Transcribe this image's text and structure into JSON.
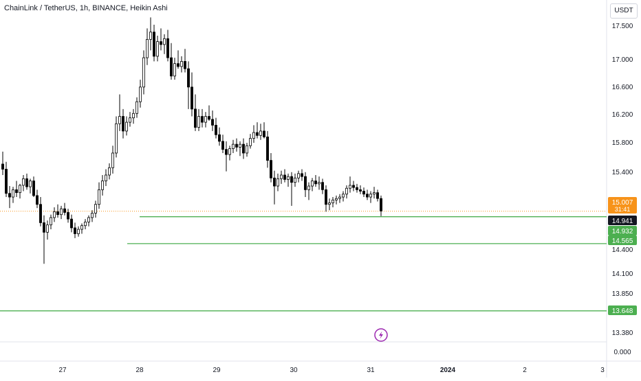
{
  "header": {
    "title": "ChainLink / TetherUS, 1h, BINANCE, Heikin Ashi",
    "currency": "USDT"
  },
  "colors": {
    "up": "#ffffff",
    "down": "#000000",
    "wick": "#000000",
    "line": "#4caf50",
    "current": "#f7931a",
    "background": "#ffffff"
  },
  "icons": {
    "lightning": "lightning-icon"
  },
  "chart_data": {
    "type": "candlestick",
    "style": "Heikin Ashi",
    "symbol": "ChainLink / TetherUS",
    "interval": "1h",
    "exchange": "BINANCE",
    "x_tick_labels": [
      "27",
      "28",
      "29",
      "30",
      "31",
      "2024",
      "2",
      "3"
    ],
    "y_tick_labels": [
      "17.500",
      "17.000",
      "16.600",
      "16.200",
      "15.800",
      "15.400",
      "14.400",
      "14.100",
      "13.850",
      "13.380",
      "0.000"
    ],
    "price_tags": [
      {
        "label": "15.007",
        "sublabel": "31:41",
        "kind": "current"
      },
      {
        "label": "14.941",
        "kind": "dark"
      },
      {
        "label": "14.932",
        "kind": "green"
      },
      {
        "label": "14.565",
        "kind": "green"
      },
      {
        "label": "13.648",
        "kind": "green"
      }
    ],
    "horizontal_lines": [
      {
        "price": 14.932,
        "start_x": 203
      },
      {
        "price": 14.565,
        "start_x": 185
      },
      {
        "price": 13.648,
        "start_x": 0
      }
    ],
    "candles": [
      {
        "o": 15.65,
        "h": 15.82,
        "l": 15.5,
        "c": 15.58
      },
      {
        "o": 15.58,
        "h": 15.68,
        "l": 15.2,
        "c": 15.25
      },
      {
        "o": 15.25,
        "h": 15.35,
        "l": 15.05,
        "c": 15.2
      },
      {
        "o": 15.2,
        "h": 15.34,
        "l": 15.12,
        "c": 15.3
      },
      {
        "o": 15.3,
        "h": 15.42,
        "l": 15.2,
        "c": 15.26
      },
      {
        "o": 15.26,
        "h": 15.38,
        "l": 15.18,
        "c": 15.36
      },
      {
        "o": 15.36,
        "h": 15.5,
        "l": 15.28,
        "c": 15.45
      },
      {
        "o": 15.45,
        "h": 15.52,
        "l": 15.3,
        "c": 15.34
      },
      {
        "o": 15.34,
        "h": 15.45,
        "l": 15.25,
        "c": 15.42
      },
      {
        "o": 15.42,
        "h": 15.48,
        "l": 15.2,
        "c": 15.22
      },
      {
        "o": 15.22,
        "h": 15.3,
        "l": 15.05,
        "c": 15.1
      },
      {
        "o": 15.1,
        "h": 15.2,
        "l": 14.8,
        "c": 14.85
      },
      {
        "o": 14.85,
        "h": 14.95,
        "l": 14.29,
        "c": 14.72
      },
      {
        "o": 14.72,
        "h": 14.88,
        "l": 14.62,
        "c": 14.82
      },
      {
        "o": 14.82,
        "h": 14.96,
        "l": 14.76,
        "c": 14.92
      },
      {
        "o": 14.92,
        "h": 15.06,
        "l": 14.86,
        "c": 15.0
      },
      {
        "o": 15.0,
        "h": 15.1,
        "l": 14.92,
        "c": 14.96
      },
      {
        "o": 14.96,
        "h": 15.08,
        "l": 14.9,
        "c": 15.04
      },
      {
        "o": 15.04,
        "h": 15.12,
        "l": 14.95,
        "c": 14.99
      },
      {
        "o": 14.99,
        "h": 15.04,
        "l": 14.85,
        "c": 14.9
      },
      {
        "o": 14.9,
        "h": 14.96,
        "l": 14.72,
        "c": 14.78
      },
      {
        "o": 14.78,
        "h": 14.85,
        "l": 14.64,
        "c": 14.7
      },
      {
        "o": 14.7,
        "h": 14.8,
        "l": 14.66,
        "c": 14.76
      },
      {
        "o": 14.76,
        "h": 14.84,
        "l": 14.7,
        "c": 14.81
      },
      {
        "o": 14.81,
        "h": 14.9,
        "l": 14.76,
        "c": 14.86
      },
      {
        "o": 14.86,
        "h": 14.95,
        "l": 14.8,
        "c": 14.92
      },
      {
        "o": 14.92,
        "h": 15.02,
        "l": 14.86,
        "c": 14.98
      },
      {
        "o": 14.98,
        "h": 15.15,
        "l": 14.92,
        "c": 15.1
      },
      {
        "o": 15.1,
        "h": 15.4,
        "l": 15.04,
        "c": 15.3
      },
      {
        "o": 15.3,
        "h": 15.5,
        "l": 15.22,
        "c": 15.42
      },
      {
        "o": 15.42,
        "h": 15.58,
        "l": 15.35,
        "c": 15.5
      },
      {
        "o": 15.5,
        "h": 15.66,
        "l": 15.44,
        "c": 15.6
      },
      {
        "o": 15.6,
        "h": 15.9,
        "l": 15.52,
        "c": 15.8
      },
      {
        "o": 15.8,
        "h": 16.3,
        "l": 15.74,
        "c": 16.2
      },
      {
        "o": 16.2,
        "h": 16.6,
        "l": 16.1,
        "c": 16.3
      },
      {
        "o": 16.3,
        "h": 16.4,
        "l": 16.0,
        "c": 16.1
      },
      {
        "o": 16.1,
        "h": 16.3,
        "l": 16.04,
        "c": 16.22
      },
      {
        "o": 16.22,
        "h": 16.36,
        "l": 16.16,
        "c": 16.28
      },
      {
        "o": 16.28,
        "h": 16.4,
        "l": 16.2,
        "c": 16.34
      },
      {
        "o": 16.34,
        "h": 16.56,
        "l": 16.28,
        "c": 16.5
      },
      {
        "o": 16.5,
        "h": 16.8,
        "l": 16.42,
        "c": 16.7
      },
      {
        "o": 16.7,
        "h": 17.2,
        "l": 16.6,
        "c": 17.1
      },
      {
        "o": 17.1,
        "h": 17.5,
        "l": 17.0,
        "c": 17.35
      },
      {
        "o": 17.35,
        "h": 17.65,
        "l": 17.2,
        "c": 17.45
      },
      {
        "o": 17.45,
        "h": 17.55,
        "l": 17.05,
        "c": 17.12
      },
      {
        "o": 17.12,
        "h": 17.4,
        "l": 17.05,
        "c": 17.32
      },
      {
        "o": 17.32,
        "h": 17.5,
        "l": 17.2,
        "c": 17.28
      },
      {
        "o": 17.28,
        "h": 17.42,
        "l": 17.15,
        "c": 17.36
      },
      {
        "o": 17.36,
        "h": 17.48,
        "l": 17.05,
        "c": 17.1
      },
      {
        "o": 17.1,
        "h": 17.3,
        "l": 16.8,
        "c": 16.85
      },
      {
        "o": 16.85,
        "h": 17.1,
        "l": 16.8,
        "c": 17.02
      },
      {
        "o": 17.02,
        "h": 17.2,
        "l": 16.95,
        "c": 16.98
      },
      {
        "o": 16.98,
        "h": 17.12,
        "l": 16.9,
        "c": 17.05
      },
      {
        "o": 17.05,
        "h": 17.22,
        "l": 16.9,
        "c": 16.95
      },
      {
        "o": 16.95,
        "h": 17.05,
        "l": 16.4,
        "c": 16.7
      },
      {
        "o": 16.7,
        "h": 16.9,
        "l": 16.3,
        "c": 16.4
      },
      {
        "o": 16.4,
        "h": 16.6,
        "l": 16.1,
        "c": 16.15
      },
      {
        "o": 16.15,
        "h": 16.4,
        "l": 16.1,
        "c": 16.3
      },
      {
        "o": 16.3,
        "h": 16.4,
        "l": 16.15,
        "c": 16.22
      },
      {
        "o": 16.22,
        "h": 16.36,
        "l": 16.15,
        "c": 16.3
      },
      {
        "o": 16.3,
        "h": 16.45,
        "l": 16.24,
        "c": 16.26
      },
      {
        "o": 16.26,
        "h": 16.38,
        "l": 16.1,
        "c": 16.18
      },
      {
        "o": 16.18,
        "h": 16.28,
        "l": 16.0,
        "c": 16.05
      },
      {
        "o": 16.05,
        "h": 16.15,
        "l": 15.9,
        "c": 15.96
      },
      {
        "o": 15.96,
        "h": 16.05,
        "l": 15.8,
        "c": 15.85
      },
      {
        "o": 15.85,
        "h": 15.96,
        "l": 15.55,
        "c": 15.78
      },
      {
        "o": 15.78,
        "h": 15.9,
        "l": 15.7,
        "c": 15.86
      },
      {
        "o": 15.86,
        "h": 15.98,
        "l": 15.8,
        "c": 15.92
      },
      {
        "o": 15.92,
        "h": 16.0,
        "l": 15.82,
        "c": 15.88
      },
      {
        "o": 15.88,
        "h": 15.96,
        "l": 15.76,
        "c": 15.92
      },
      {
        "o": 15.92,
        "h": 16.0,
        "l": 15.72,
        "c": 15.8
      },
      {
        "o": 15.8,
        "h": 15.94,
        "l": 15.75,
        "c": 15.9
      },
      {
        "o": 15.9,
        "h": 16.06,
        "l": 15.86,
        "c": 16.0
      },
      {
        "o": 16.0,
        "h": 16.18,
        "l": 15.94,
        "c": 16.08
      },
      {
        "o": 16.08,
        "h": 16.22,
        "l": 16.0,
        "c": 16.04
      },
      {
        "o": 16.04,
        "h": 16.2,
        "l": 15.98,
        "c": 16.1
      },
      {
        "o": 16.1,
        "h": 16.22,
        "l": 16.0,
        "c": 16.02
      },
      {
        "o": 16.02,
        "h": 16.1,
        "l": 15.6,
        "c": 15.7
      },
      {
        "o": 15.7,
        "h": 15.8,
        "l": 15.4,
        "c": 15.46
      },
      {
        "o": 15.46,
        "h": 15.56,
        "l": 15.1,
        "c": 15.35
      },
      {
        "o": 15.35,
        "h": 15.52,
        "l": 15.28,
        "c": 15.45
      },
      {
        "o": 15.45,
        "h": 15.56,
        "l": 15.38,
        "c": 15.5
      },
      {
        "o": 15.5,
        "h": 15.58,
        "l": 15.4,
        "c": 15.44
      },
      {
        "o": 15.44,
        "h": 15.52,
        "l": 15.34,
        "c": 15.48
      },
      {
        "o": 15.48,
        "h": 15.54,
        "l": 15.08,
        "c": 15.4
      },
      {
        "o": 15.4,
        "h": 15.52,
        "l": 15.34,
        "c": 15.46
      },
      {
        "o": 15.46,
        "h": 15.56,
        "l": 15.4,
        "c": 15.52
      },
      {
        "o": 15.52,
        "h": 15.58,
        "l": 15.42,
        "c": 15.48
      },
      {
        "o": 15.48,
        "h": 15.54,
        "l": 15.2,
        "c": 15.3
      },
      {
        "o": 15.3,
        "h": 15.4,
        "l": 15.16,
        "c": 15.35
      },
      {
        "o": 15.35,
        "h": 15.46,
        "l": 15.28,
        "c": 15.42
      },
      {
        "o": 15.42,
        "h": 15.5,
        "l": 15.34,
        "c": 15.38
      },
      {
        "o": 15.38,
        "h": 15.48,
        "l": 15.3,
        "c": 15.4
      },
      {
        "o": 15.4,
        "h": 15.45,
        "l": 15.24,
        "c": 15.3
      },
      {
        "o": 15.3,
        "h": 15.36,
        "l": 15.0,
        "c": 15.1
      },
      {
        "o": 15.1,
        "h": 15.18,
        "l": 15.02,
        "c": 15.12
      },
      {
        "o": 15.12,
        "h": 15.2,
        "l": 15.06,
        "c": 15.16
      },
      {
        "o": 15.16,
        "h": 15.22,
        "l": 15.1,
        "c": 15.18
      },
      {
        "o": 15.18,
        "h": 15.24,
        "l": 15.12,
        "c": 15.2
      },
      {
        "o": 15.2,
        "h": 15.28,
        "l": 15.14,
        "c": 15.24
      },
      {
        "o": 15.24,
        "h": 15.36,
        "l": 15.18,
        "c": 15.32
      },
      {
        "o": 15.32,
        "h": 15.48,
        "l": 15.26,
        "c": 15.36
      },
      {
        "o": 15.36,
        "h": 15.42,
        "l": 15.28,
        "c": 15.33
      },
      {
        "o": 15.33,
        "h": 15.38,
        "l": 15.26,
        "c": 15.3
      },
      {
        "o": 15.3,
        "h": 15.36,
        "l": 15.24,
        "c": 15.28
      },
      {
        "o": 15.28,
        "h": 15.33,
        "l": 15.2,
        "c": 15.24
      },
      {
        "o": 15.24,
        "h": 15.3,
        "l": 15.16,
        "c": 15.2
      },
      {
        "o": 15.2,
        "h": 15.28,
        "l": 15.12,
        "c": 15.24
      },
      {
        "o": 15.24,
        "h": 15.34,
        "l": 15.18,
        "c": 15.26
      },
      {
        "o": 15.26,
        "h": 15.3,
        "l": 15.14,
        "c": 15.18
      },
      {
        "o": 15.18,
        "h": 15.22,
        "l": 14.94,
        "c": 15.01
      }
    ],
    "current_price": 15.007,
    "ylim_panel": [
      13.3,
      17.7
    ]
  }
}
